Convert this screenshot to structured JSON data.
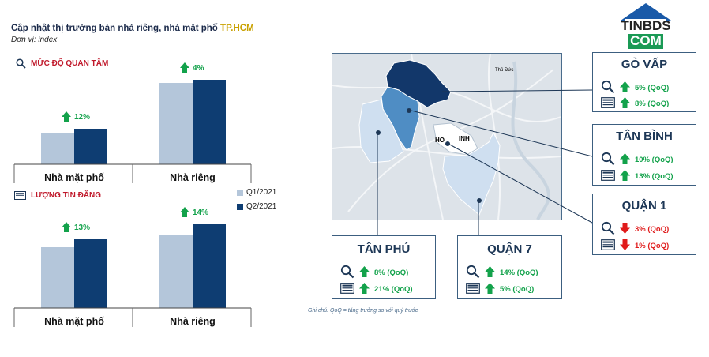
{
  "header": {
    "title_main": "Cập nhật thị trường bán nhà riêng, nhà mặt phố",
    "title_highlight": "TP.HCM",
    "unit": "Đơn vị: index"
  },
  "logo": {
    "line1": "TINBDS",
    "line2": "COM"
  },
  "note": "Ghi chú: QoQ = tăng trưởng so với quý trước",
  "legend": [
    {
      "name": "Q1/2021",
      "color": "#b4c6da"
    },
    {
      "name": "Q2/2021",
      "color": "#0e3d72"
    }
  ],
  "chart_data": [
    {
      "type": "bar",
      "title": "MỨC ĐỘ QUAN TÂM",
      "categories": [
        "Nhà mặt phố",
        "Nhà riêng"
      ],
      "series": [
        {
          "name": "Q1/2021",
          "values": [
            40,
            103
          ]
        },
        {
          "name": "Q2/2021",
          "values": [
            45,
            107
          ]
        }
      ],
      "growth_labels": [
        "12%",
        "4%"
      ],
      "ylim": [
        0,
        130
      ]
    },
    {
      "type": "bar",
      "title": "LƯỢNG TIN ĐĂNG",
      "categories": [
        "Nhà mặt phố",
        "Nhà riêng"
      ],
      "series": [
        {
          "name": "Q1/2021",
          "values": [
            77,
            93
          ]
        },
        {
          "name": "Q2/2021",
          "values": [
            87,
            106
          ]
        }
      ],
      "growth_labels": [
        "13%",
        "14%"
      ],
      "ylim": [
        0,
        130
      ]
    }
  ],
  "map": {
    "labels": [
      "HO",
      "INH",
      "Thủ Đức"
    ]
  },
  "districts": [
    {
      "name": "GÒ VẤP",
      "interest": "5% (QoQ)",
      "interest_dir": "up",
      "listing": "8% (QoQ)",
      "listing_dir": "up"
    },
    {
      "name": "TÂN BÌNH",
      "interest": "10% (QoQ)",
      "interest_dir": "up",
      "listing": "13% (QoQ)",
      "listing_dir": "up"
    },
    {
      "name": "QUẬN 1",
      "interest": "3% (QoQ)",
      "interest_dir": "down",
      "listing": "1% (QoQ)",
      "listing_dir": "down"
    },
    {
      "name": "TÂN PHÚ",
      "interest": "8% (QoQ)",
      "interest_dir": "up",
      "listing": "21% (QoQ)",
      "listing_dir": "up"
    },
    {
      "name": "QUẬN 7",
      "interest": "14% (QoQ)",
      "interest_dir": "up",
      "listing": "5% (QoQ)",
      "listing_dir": "up"
    }
  ]
}
